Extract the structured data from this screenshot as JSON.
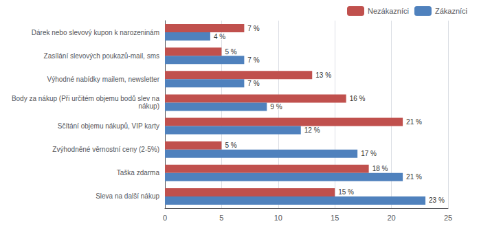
{
  "chart_data": {
    "type": "bar",
    "orientation": "horizontal",
    "categories": [
      "Dárek nebo slevový kupon k narozeninám",
      "Zasílání slevových poukazů-mail, sms",
      "Výhodné nabídky mailem, newsletter",
      "Body za nákup (Při určitém objemu bodů slev na\n  nákup)",
      "Sčítání objemu nákupů, VIP karty",
      "Zvýhodněné věrnostní ceny (2-5%)",
      "Taška zdarma",
      "Sleva na další nákup"
    ],
    "series": [
      {
        "name": "Nezákazníci",
        "color": "#C0504D",
        "values": [
          7,
          5,
          13,
          16,
          21,
          5,
          18,
          15
        ],
        "value_labels": [
          "7 %",
          "5 %",
          "13 %",
          "16 %",
          "21 %",
          "5 %",
          "18 %",
          "15 %"
        ]
      },
      {
        "name": "Zákazníci",
        "color": "#4F81BD",
        "values": [
          4,
          7,
          7,
          9,
          12,
          17,
          21,
          23
        ],
        "value_labels": [
          "4 %",
          "7 %",
          "7 %",
          "9 %",
          "12 %",
          "17 %",
          "21 %",
          "23 %"
        ]
      }
    ],
    "xlim": [
      0,
      25
    ],
    "xticks": [
      0,
      5,
      10,
      15,
      20,
      25
    ],
    "grid": true,
    "legend": "upper right",
    "data_labels": true
  }
}
